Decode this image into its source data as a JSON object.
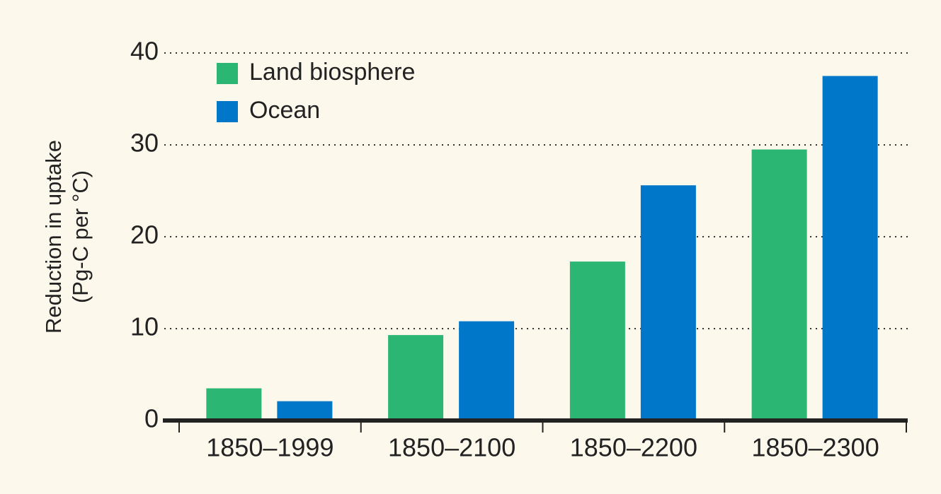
{
  "chart_data": {
    "type": "bar",
    "ylabel": [
      "Reduction in uptake",
      "(Pg-C per °C)"
    ],
    "categories": [
      "1850–1999",
      "1850–2100",
      "1850–2200",
      "1850–2300"
    ],
    "series": [
      {
        "name": "Land biosphere",
        "color": "#2bb673",
        "values": [
          3.5,
          9.3,
          17.3,
          29.5
        ]
      },
      {
        "name": "Ocean",
        "color": "#0077c8",
        "values": [
          2.1,
          10.8,
          25.6,
          37.5
        ]
      }
    ],
    "ylim": [
      0,
      40
    ],
    "yticks": [
      0,
      10,
      20,
      30,
      40
    ],
    "grid": true
  }
}
